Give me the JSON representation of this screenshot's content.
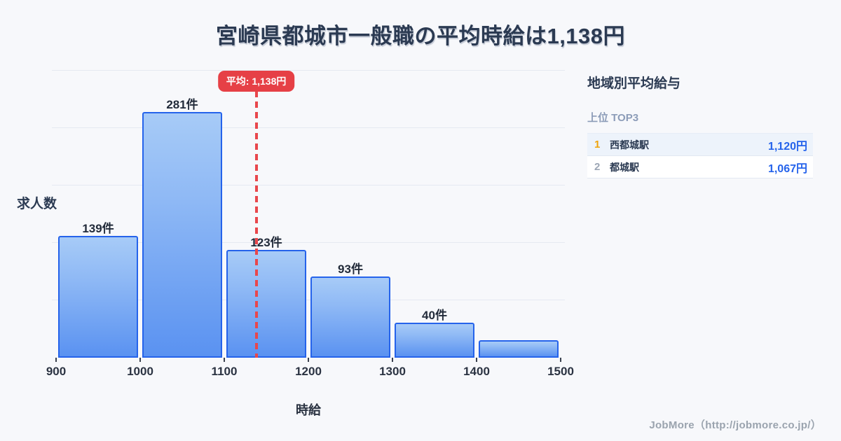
{
  "chart_data": {
    "type": "bar",
    "subtype": "histogram",
    "title": "宮崎県都城市一般職の平均時給は1,138円",
    "xlabel": "時給",
    "ylabel": "求人数",
    "bin_edges": [
      900,
      1000,
      1100,
      1200,
      1300,
      1400,
      1500
    ],
    "x_tick_labels": [
      "900",
      "1000",
      "1100",
      "1200",
      "1300",
      "1400",
      "1500"
    ],
    "values": [
      139,
      281,
      123,
      93,
      40,
      20
    ],
    "bar_labels": [
      "139件",
      "281件",
      "123件",
      "93件",
      "40件",
      ""
    ],
    "unit": "件",
    "mean": 1138,
    "mean_label": "平均: 1,138円",
    "xlim": [
      900,
      1500
    ],
    "ylim_top_value": 281,
    "grid": true,
    "legend": false
  },
  "panel": {
    "heading": "地域別平均給与",
    "subheading": "上位 TOP3",
    "rows": [
      {
        "rank": "1",
        "name": "西都城駅",
        "value": "1,120円"
      },
      {
        "rank": "2",
        "name": "都城駅",
        "value": "1,067円"
      }
    ]
  },
  "footer": {
    "credit": "JobMore（http://jobmore.co.jp/）"
  },
  "colors": {
    "background": "#f7f8fb",
    "title_text": "#2b3a52",
    "bar_fill_top": "#a7cbf7",
    "bar_fill_bottom": "#5a92f1",
    "bar_border": "#2563eb",
    "mean_red": "#e64046",
    "gridline": "#e5e9f1",
    "value_blue": "#2563eb",
    "rank_gold": "#f0a30a",
    "rank_gray": "#9ca6b5",
    "subheading_gray": "#8c9cb8",
    "footer_gray": "#9aa3ae"
  }
}
